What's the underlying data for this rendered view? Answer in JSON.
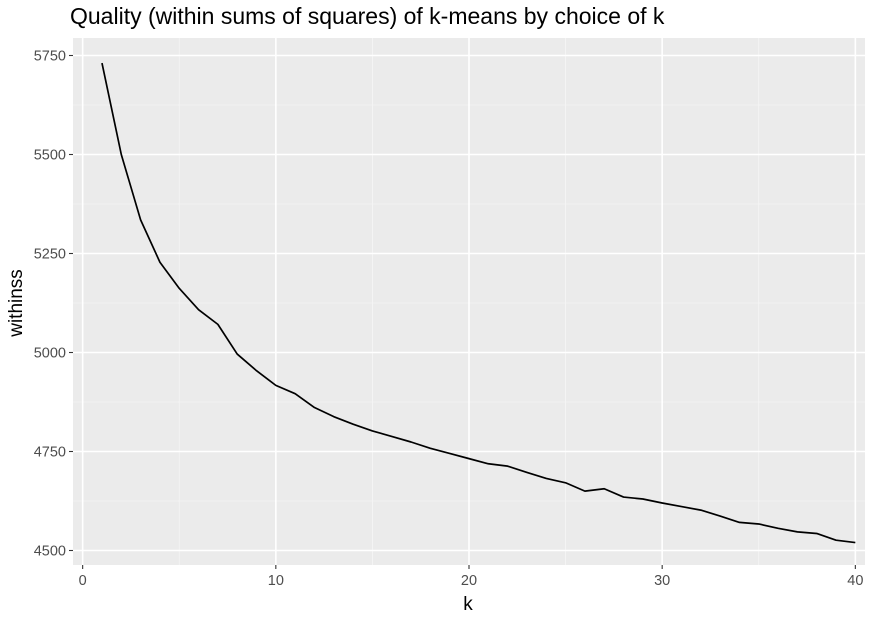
{
  "chart_data": {
    "type": "line",
    "title": "Quality (within sums of squares) of k-means by choice of k",
    "xlabel": "k",
    "ylabel": "withinss",
    "xlim": [
      -0.5,
      40.5
    ],
    "ylim": [
      4480,
      5750
    ],
    "x_ticks": [
      0,
      10,
      20,
      30,
      40
    ],
    "x_tick_labels": [
      "0",
      "10",
      "20",
      "30",
      "40"
    ],
    "y_ticks": [
      4500,
      4750,
      5000,
      5250,
      5500,
      5750
    ],
    "y_tick_labels": [
      "4500",
      "4750",
      "5000",
      "5250",
      "5500",
      "5750"
    ],
    "grid": true,
    "background": "#ebebeb",
    "line_color": "#000000",
    "series": [
      {
        "x": [
          1,
          2,
          3,
          4,
          5,
          6,
          7,
          8,
          9,
          10,
          11,
          12,
          13,
          14,
          15,
          16,
          17,
          18,
          19,
          20,
          21,
          22,
          23,
          24,
          25,
          26,
          27,
          28,
          29,
          30,
          31,
          32,
          33,
          34,
          35,
          36,
          37,
          38,
          39,
          40
        ],
        "values": [
          5731,
          5500,
          5335,
          5228,
          5162,
          5108,
          5071,
          4996,
          4954,
          4917,
          4896,
          4861,
          4838,
          4819,
          4802,
          4788,
          4774,
          4758,
          4745,
          4732,
          4719,
          4713,
          4697,
          4682,
          4671,
          4650,
          4656,
          4635,
          4630,
          4620,
          4611,
          4602,
          4587,
          4571,
          4567,
          4556,
          4547,
          4543,
          4526,
          4520
        ]
      }
    ]
  }
}
